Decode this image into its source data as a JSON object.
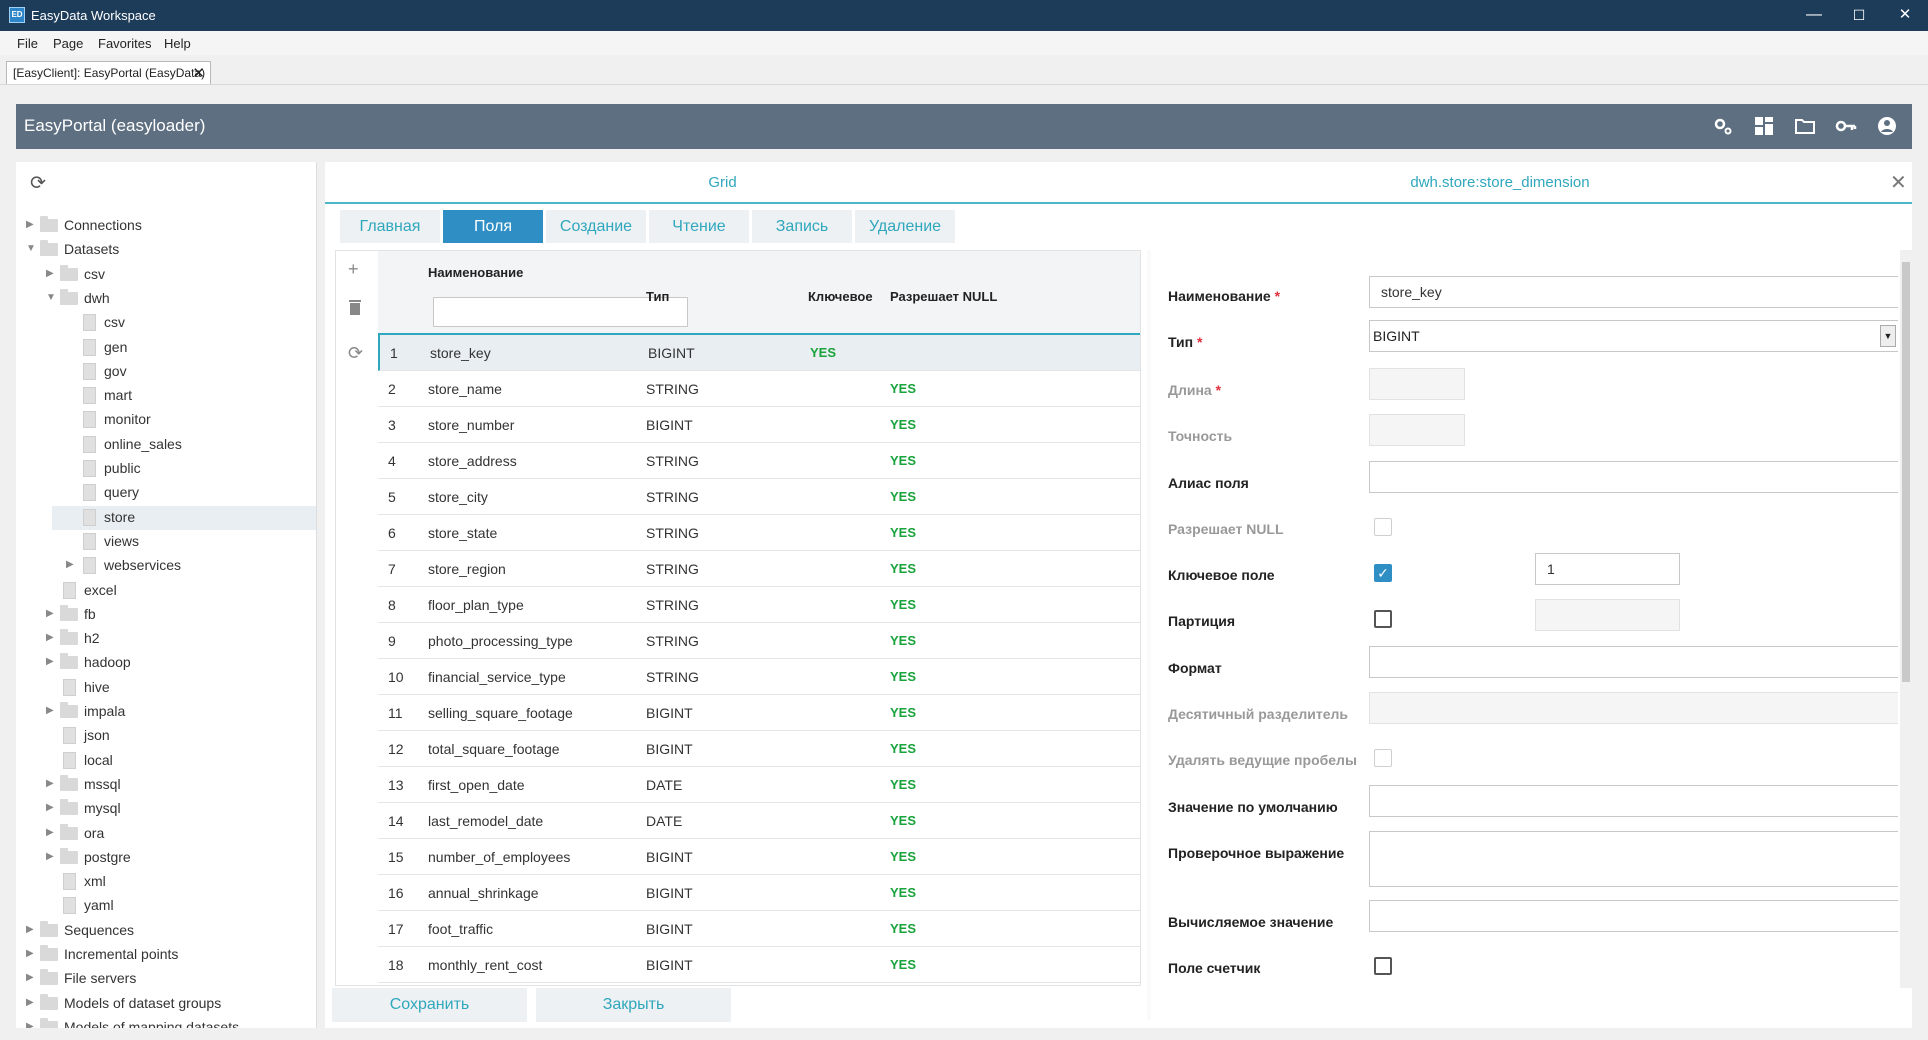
{
  "window": {
    "title": "EasyData Workspace",
    "logo": "ED",
    "minimize": "—",
    "maximize": "☐",
    "close": "✕"
  },
  "menu": [
    "File",
    "Page",
    "Favorites",
    "Help"
  ],
  "doc_tab": {
    "label": "[EasyClient]: EasyPortal (EasyData)",
    "close": "✕"
  },
  "header": {
    "title": "EasyPortal (easyloader)",
    "icons": [
      "settings-icon",
      "dashboard-icon",
      "folder-icon",
      "key-icon",
      "user-icon"
    ]
  },
  "tree": [
    {
      "label": "Connections",
      "level": 0,
      "type": "folder",
      "arrow": "▶"
    },
    {
      "label": "Datasets",
      "level": 0,
      "type": "folder",
      "arrow": "▼"
    },
    {
      "label": "csv",
      "level": 1,
      "type": "folder",
      "arrow": "▶"
    },
    {
      "label": "dwh",
      "level": 1,
      "type": "folder",
      "arrow": "▼"
    },
    {
      "label": "csv",
      "level": 2,
      "type": "file"
    },
    {
      "label": "gen",
      "level": 2,
      "type": "file"
    },
    {
      "label": "gov",
      "level": 2,
      "type": "file"
    },
    {
      "label": "mart",
      "level": 2,
      "type": "file"
    },
    {
      "label": "monitor",
      "level": 2,
      "type": "file"
    },
    {
      "label": "online_sales",
      "level": 2,
      "type": "file"
    },
    {
      "label": "public",
      "level": 2,
      "type": "file"
    },
    {
      "label": "query",
      "level": 2,
      "type": "file"
    },
    {
      "label": "store",
      "level": 2,
      "type": "file",
      "selected": true
    },
    {
      "label": "views",
      "level": 2,
      "type": "file"
    },
    {
      "label": "webservices",
      "level": 2,
      "type": "file",
      "arrow": "▶"
    },
    {
      "label": "excel",
      "level": 1,
      "type": "file"
    },
    {
      "label": "fb",
      "level": 1,
      "type": "folder",
      "arrow": "▶"
    },
    {
      "label": "h2",
      "level": 1,
      "type": "folder",
      "arrow": "▶"
    },
    {
      "label": "hadoop",
      "level": 1,
      "type": "folder",
      "arrow": "▶"
    },
    {
      "label": "hive",
      "level": 1,
      "type": "file"
    },
    {
      "label": "impala",
      "level": 1,
      "type": "folder",
      "arrow": "▶"
    },
    {
      "label": "json",
      "level": 1,
      "type": "file"
    },
    {
      "label": "local",
      "level": 1,
      "type": "file"
    },
    {
      "label": "mssql",
      "level": 1,
      "type": "folder",
      "arrow": "▶"
    },
    {
      "label": "mysql",
      "level": 1,
      "type": "folder",
      "arrow": "▶"
    },
    {
      "label": "ora",
      "level": 1,
      "type": "folder",
      "arrow": "▶"
    },
    {
      "label": "postgre",
      "level": 1,
      "type": "folder",
      "arrow": "▶"
    },
    {
      "label": "xml",
      "level": 1,
      "type": "file"
    },
    {
      "label": "yaml",
      "level": 1,
      "type": "file"
    },
    {
      "label": "Sequences",
      "level": 0,
      "type": "folder",
      "arrow": "▶"
    },
    {
      "label": "Incremental points",
      "level": 0,
      "type": "folder",
      "arrow": "▶"
    },
    {
      "label": "File servers",
      "level": 0,
      "type": "folder",
      "arrow": "▶"
    },
    {
      "label": "Models of dataset groups",
      "level": 0,
      "type": "folder",
      "arrow": "▶"
    },
    {
      "label": "Models of mapping datasets",
      "level": 0,
      "type": "folder",
      "arrow": "▶"
    }
  ],
  "top_tabs": {
    "grid": "Grid",
    "dataset": "dwh.store:store_dimension",
    "close": "✕"
  },
  "sub_tabs": [
    "Главная",
    "Поля",
    "Создание",
    "Чтение",
    "Запись",
    "Удаление"
  ],
  "grid": {
    "columns": {
      "name": "Наименование",
      "type": "Тип",
      "key": "Ключевое",
      "nullable": "Разрешает NULL"
    },
    "rows": [
      {
        "n": "1",
        "name": "store_key",
        "type": "BIGINT",
        "key": "YES",
        "nullable": ""
      },
      {
        "n": "2",
        "name": "store_name",
        "type": "STRING",
        "key": "",
        "nullable": "YES"
      },
      {
        "n": "3",
        "name": "store_number",
        "type": "BIGINT",
        "key": "",
        "nullable": "YES"
      },
      {
        "n": "4",
        "name": "store_address",
        "type": "STRING",
        "key": "",
        "nullable": "YES"
      },
      {
        "n": "5",
        "name": "store_city",
        "type": "STRING",
        "key": "",
        "nullable": "YES"
      },
      {
        "n": "6",
        "name": "store_state",
        "type": "STRING",
        "key": "",
        "nullable": "YES"
      },
      {
        "n": "7",
        "name": "store_region",
        "type": "STRING",
        "key": "",
        "nullable": "YES"
      },
      {
        "n": "8",
        "name": "floor_plan_type",
        "type": "STRING",
        "key": "",
        "nullable": "YES"
      },
      {
        "n": "9",
        "name": "photo_processing_type",
        "type": "STRING",
        "key": "",
        "nullable": "YES"
      },
      {
        "n": "10",
        "name": "financial_service_type",
        "type": "STRING",
        "key": "",
        "nullable": "YES"
      },
      {
        "n": "11",
        "name": "selling_square_footage",
        "type": "BIGINT",
        "key": "",
        "nullable": "YES"
      },
      {
        "n": "12",
        "name": "total_square_footage",
        "type": "BIGINT",
        "key": "",
        "nullable": "YES"
      },
      {
        "n": "13",
        "name": "first_open_date",
        "type": "DATE",
        "key": "",
        "nullable": "YES"
      },
      {
        "n": "14",
        "name": "last_remodel_date",
        "type": "DATE",
        "key": "",
        "nullable": "YES"
      },
      {
        "n": "15",
        "name": "number_of_employees",
        "type": "BIGINT",
        "key": "",
        "nullable": "YES"
      },
      {
        "n": "16",
        "name": "annual_shrinkage",
        "type": "BIGINT",
        "key": "",
        "nullable": "YES"
      },
      {
        "n": "17",
        "name": "foot_traffic",
        "type": "BIGINT",
        "key": "",
        "nullable": "YES"
      },
      {
        "n": "18",
        "name": "monthly_rent_cost",
        "type": "BIGINT",
        "key": "",
        "nullable": "YES"
      }
    ]
  },
  "buttons": {
    "save": "Сохранить",
    "close": "Закрыть"
  },
  "form": {
    "name_label": "Наименование",
    "name_value": "store_key",
    "type_label": "Тип",
    "type_value": "BIGINT",
    "length_label": "Длина",
    "precision_label": "Точность",
    "alias_label": "Алиас поля",
    "nullable_label": "Разрешает NULL",
    "key_label": "Ключевое поле",
    "key_order": "1",
    "partition_label": "Партиция",
    "format_label": "Формат",
    "decimal_label": "Десятичный разделитель",
    "trim_label": "Удалять ведущие пробелы",
    "default_label": "Значение по умолчанию",
    "check_label": "Проверочное выражение",
    "computed_label": "Вычисляемое значение",
    "counter_label": "Поле счетчик",
    "required_mark": "*"
  },
  "colors": {
    "title_bar": "#1d3c5a",
    "header": "#5d6f81",
    "accent": "#2fa7bd",
    "active_tab": "#2f8fc4",
    "yes": "#19a33b"
  }
}
